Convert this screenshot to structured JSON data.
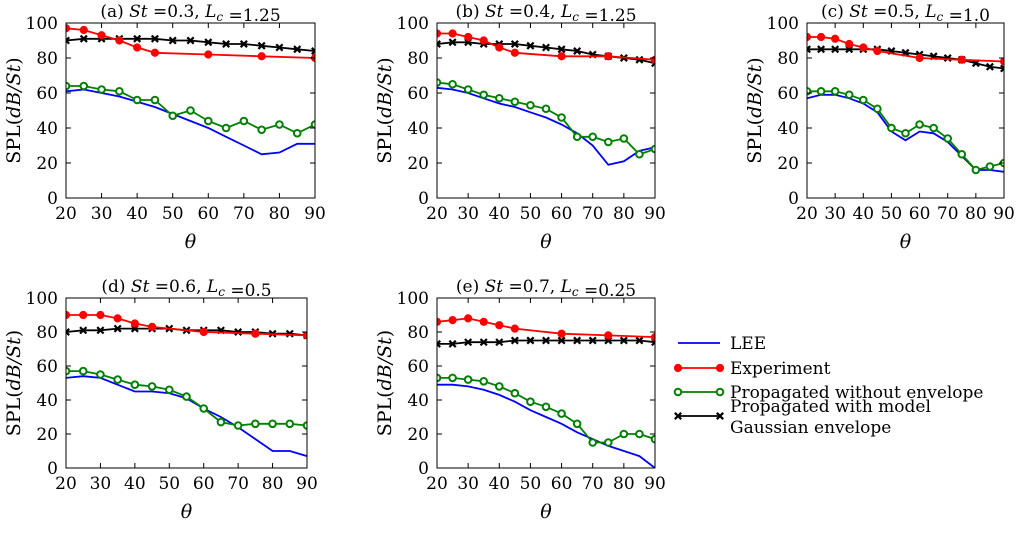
{
  "colors": {
    "LEE": "#0000ff",
    "Experiment": "#ff0000",
    "Propagated without envelope": "#008000",
    "Propagated with model Gaussian envelope": "#000000"
  },
  "legend": {
    "placement": "right of bottom row",
    "entries": [
      {
        "series": "LEE",
        "lines": [
          "LEE"
        ]
      },
      {
        "series": "Experiment",
        "lines": [
          "Experiment"
        ]
      },
      {
        "series": "Propagated without envelope",
        "lines": [
          "Propagated without envelope"
        ]
      },
      {
        "series": "Propagated with model Gaussian envelope",
        "lines": [
          "Propagated with model",
          "Gaussian envelope"
        ]
      }
    ]
  },
  "chart_data": [
    {
      "type": "line",
      "title": "(a) St =0.3, L_c =1.25",
      "xlabel": "θ",
      "ylabel": "SPL(dB/St)",
      "xlim": [
        20,
        90
      ],
      "ylim": [
        0,
        100
      ],
      "xticks": [
        20,
        30,
        40,
        50,
        60,
        70,
        80,
        90
      ],
      "yticks": [
        0,
        20,
        40,
        60,
        80,
        100
      ],
      "grid": false,
      "series": [
        {
          "name": "LEE",
          "marker": "none",
          "x": [
            20,
            25,
            30,
            35,
            40,
            45,
            50,
            55,
            60,
            65,
            70,
            75,
            80,
            85,
            90
          ],
          "y": [
            61,
            62,
            60,
            58,
            55,
            52,
            48,
            44,
            40,
            35,
            30,
            25,
            26,
            31,
            31
          ]
        },
        {
          "name": "Experiment",
          "marker": "dot",
          "x": [
            20,
            25,
            30,
            35,
            40,
            45,
            60,
            75,
            90
          ],
          "y": [
            97,
            96,
            93,
            90,
            86,
            83,
            82,
            81,
            80
          ]
        },
        {
          "name": "Propagated without envelope",
          "marker": "circle",
          "x": [
            20,
            25,
            30,
            35,
            40,
            45,
            50,
            55,
            60,
            65,
            70,
            75,
            80,
            85,
            90
          ],
          "y": [
            64,
            64,
            62,
            61,
            56,
            56,
            47,
            50,
            44,
            40,
            44,
            39,
            42,
            37,
            42
          ]
        },
        {
          "name": "Propagated with model Gaussian envelope",
          "marker": "x",
          "x": [
            20,
            25,
            30,
            35,
            40,
            45,
            50,
            55,
            60,
            65,
            70,
            75,
            80,
            85,
            90
          ],
          "y": [
            90,
            91,
            91,
            91,
            91,
            91,
            90,
            90,
            89,
            88,
            88,
            87,
            86,
            85,
            84
          ]
        }
      ]
    },
    {
      "type": "line",
      "title": "(b) St =0.4, L_c =1.25",
      "xlabel": "θ",
      "ylabel": "SPL(dB/St)",
      "xlim": [
        20,
        90
      ],
      "ylim": [
        0,
        100
      ],
      "xticks": [
        20,
        30,
        40,
        50,
        60,
        70,
        80,
        90
      ],
      "yticks": [
        0,
        20,
        40,
        60,
        80,
        100
      ],
      "grid": false,
      "series": [
        {
          "name": "LEE",
          "marker": "none",
          "x": [
            20,
            25,
            30,
            35,
            40,
            45,
            50,
            55,
            60,
            65,
            70,
            75,
            80,
            85,
            90
          ],
          "y": [
            63,
            62,
            60,
            57,
            54,
            52,
            49,
            46,
            42,
            37,
            30,
            19,
            21,
            27,
            29
          ]
        },
        {
          "name": "Experiment",
          "marker": "dot",
          "x": [
            20,
            25,
            30,
            35,
            40,
            45,
            60,
            75,
            90
          ],
          "y": [
            94,
            94,
            92,
            90,
            86,
            83,
            81,
            81,
            79
          ]
        },
        {
          "name": "Propagated without envelope",
          "marker": "circle",
          "x": [
            20,
            25,
            30,
            35,
            40,
            45,
            50,
            55,
            60,
            65,
            70,
            75,
            80,
            85,
            90
          ],
          "y": [
            66,
            65,
            62,
            59,
            57,
            55,
            53,
            51,
            46,
            35,
            35,
            32,
            34,
            25,
            28
          ]
        },
        {
          "name": "Propagated with model Gaussian envelope",
          "marker": "x",
          "x": [
            20,
            25,
            30,
            35,
            40,
            45,
            50,
            55,
            60,
            65,
            70,
            75,
            80,
            85,
            90
          ],
          "y": [
            88,
            89,
            89,
            88,
            88,
            88,
            87,
            86,
            85,
            84,
            82,
            81,
            80,
            79,
            77
          ]
        }
      ]
    },
    {
      "type": "line",
      "title": "(c) St =0.5, L_c =1.0",
      "xlabel": "θ",
      "ylabel": "SPL(dB/St)",
      "xlim": [
        20,
        90
      ],
      "ylim": [
        0,
        100
      ],
      "xticks": [
        20,
        30,
        40,
        50,
        60,
        70,
        80,
        90
      ],
      "yticks": [
        0,
        20,
        40,
        60,
        80,
        100
      ],
      "grid": false,
      "series": [
        {
          "name": "LEE",
          "marker": "none",
          "x": [
            20,
            25,
            30,
            35,
            40,
            45,
            50,
            55,
            60,
            65,
            70,
            75,
            80,
            85,
            90
          ],
          "y": [
            57,
            59,
            59,
            57,
            54,
            49,
            38,
            33,
            38,
            37,
            32,
            24,
            16,
            16,
            15
          ]
        },
        {
          "name": "Experiment",
          "marker": "dot",
          "x": [
            20,
            25,
            30,
            35,
            40,
            45,
            60,
            75,
            90
          ],
          "y": [
            92,
            92,
            91,
            88,
            86,
            84,
            80,
            79,
            78
          ]
        },
        {
          "name": "Propagated without envelope",
          "marker": "circle",
          "x": [
            20,
            25,
            30,
            35,
            40,
            45,
            50,
            55,
            60,
            65,
            70,
            75,
            80,
            85,
            90
          ],
          "y": [
            61,
            61,
            61,
            59,
            56,
            51,
            40,
            37,
            42,
            40,
            34,
            25,
            16,
            18,
            20
          ]
        },
        {
          "name": "Propagated with model Gaussian envelope",
          "marker": "x",
          "x": [
            20,
            25,
            30,
            35,
            40,
            45,
            50,
            55,
            60,
            65,
            70,
            75,
            80,
            85,
            90
          ],
          "y": [
            85,
            85,
            85,
            85,
            85,
            85,
            84,
            83,
            82,
            81,
            80,
            79,
            77,
            75,
            74
          ]
        }
      ]
    },
    {
      "type": "line",
      "title": "(d) St =0.6, L_c =0.5",
      "xlabel": "θ",
      "ylabel": "SPL(dB/St)",
      "xlim": [
        20,
        90
      ],
      "ylim": [
        0,
        100
      ],
      "xticks": [
        20,
        30,
        40,
        50,
        60,
        70,
        80,
        90
      ],
      "yticks": [
        0,
        20,
        40,
        60,
        80,
        100
      ],
      "grid": false,
      "series": [
        {
          "name": "LEE",
          "marker": "none",
          "x": [
            20,
            25,
            30,
            35,
            40,
            45,
            50,
            55,
            60,
            65,
            70,
            75,
            80,
            85,
            90
          ],
          "y": [
            53,
            54,
            53,
            49,
            45,
            45,
            44,
            41,
            35,
            30,
            24,
            17,
            10,
            10,
            7
          ]
        },
        {
          "name": "Experiment",
          "marker": "dot",
          "x": [
            20,
            25,
            30,
            35,
            40,
            45,
            60,
            75,
            90
          ],
          "y": [
            90,
            90,
            90,
            88,
            85,
            83,
            80,
            79,
            78
          ]
        },
        {
          "name": "Propagated without envelope",
          "marker": "circle",
          "x": [
            20,
            25,
            30,
            35,
            40,
            45,
            50,
            55,
            60,
            65,
            70,
            75,
            80,
            85,
            90
          ],
          "y": [
            57,
            57,
            55,
            52,
            49,
            48,
            46,
            42,
            35,
            27,
            25,
            26,
            26,
            26,
            25
          ]
        },
        {
          "name": "Propagated with model Gaussian envelope",
          "marker": "x",
          "x": [
            20,
            25,
            30,
            35,
            40,
            45,
            50,
            55,
            60,
            65,
            70,
            75,
            80,
            85,
            90
          ],
          "y": [
            80,
            81,
            81,
            82,
            82,
            82,
            82,
            81,
            81,
            81,
            80,
            80,
            79,
            79,
            78
          ]
        }
      ]
    },
    {
      "type": "line",
      "title": "(e) St =0.7, L_c =0.25",
      "xlabel": "θ",
      "ylabel": "SPL(dB/St)",
      "xlim": [
        20,
        90
      ],
      "ylim": [
        0,
        100
      ],
      "xticks": [
        20,
        30,
        40,
        50,
        60,
        70,
        80,
        90
      ],
      "yticks": [
        0,
        20,
        40,
        60,
        80,
        100
      ],
      "grid": false,
      "series": [
        {
          "name": "LEE",
          "marker": "none",
          "x": [
            20,
            25,
            30,
            35,
            40,
            45,
            50,
            55,
            60,
            65,
            70,
            75,
            80,
            85,
            90
          ],
          "y": [
            49,
            49,
            48,
            46,
            43,
            39,
            34,
            30,
            26,
            21,
            17,
            13,
            10,
            7,
            0
          ]
        },
        {
          "name": "Experiment",
          "marker": "dot",
          "x": [
            20,
            25,
            30,
            35,
            40,
            45,
            60,
            75,
            90
          ],
          "y": [
            86,
            87,
            88,
            86,
            84,
            82,
            79,
            78,
            77
          ]
        },
        {
          "name": "Propagated without envelope",
          "marker": "circle",
          "x": [
            20,
            25,
            30,
            35,
            40,
            45,
            50,
            55,
            60,
            65,
            70,
            75,
            80,
            85,
            90
          ],
          "y": [
            53,
            53,
            52,
            51,
            48,
            44,
            39,
            36,
            32,
            26,
            15,
            15,
            20,
            20,
            17
          ]
        },
        {
          "name": "Propagated with model Gaussian envelope",
          "marker": "x",
          "x": [
            20,
            25,
            30,
            35,
            40,
            45,
            50,
            55,
            60,
            65,
            70,
            75,
            80,
            85,
            90
          ],
          "y": [
            73,
            73,
            74,
            74,
            74,
            75,
            75,
            75,
            75,
            75,
            75,
            75,
            75,
            75,
            74
          ]
        }
      ]
    }
  ]
}
